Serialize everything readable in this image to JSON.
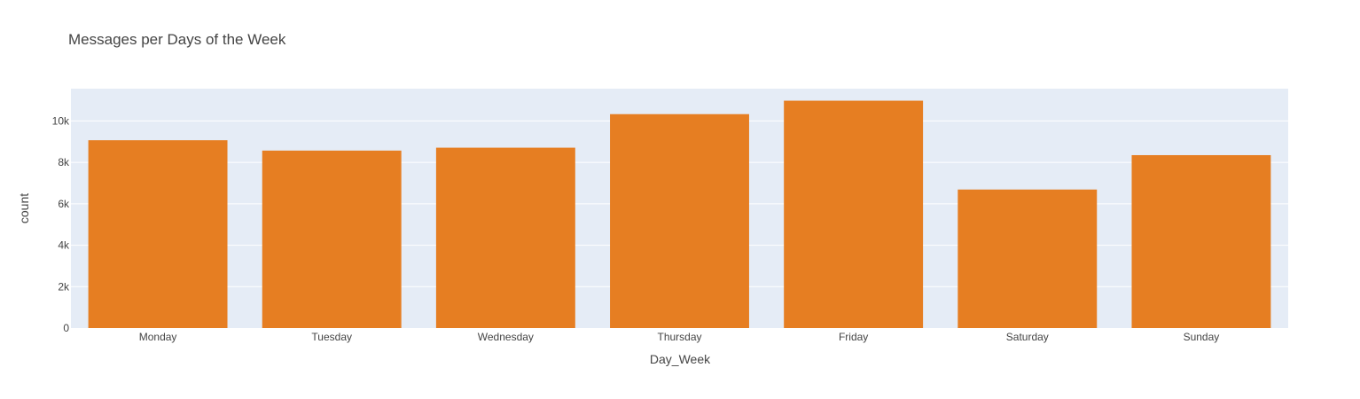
{
  "chart_data": {
    "type": "bar",
    "title": "Messages per Days of the Week",
    "xlabel": "Day_Week",
    "ylabel": "count",
    "categories": [
      "Monday",
      "Tuesday",
      "Wednesday",
      "Thursday",
      "Friday",
      "Saturday",
      "Sunday"
    ],
    "values": [
      9070,
      8570,
      8710,
      10330,
      10980,
      6690,
      8350
    ],
    "ylim": [
      0,
      11560
    ],
    "yticks": [
      0,
      2000,
      4000,
      6000,
      8000,
      10000
    ],
    "ytick_labels": [
      "0",
      "2k",
      "4k",
      "6k",
      "8k",
      "10k"
    ],
    "grid": true,
    "bar_color": "#e67e22",
    "plot_bg": "#e5ecf6"
  }
}
